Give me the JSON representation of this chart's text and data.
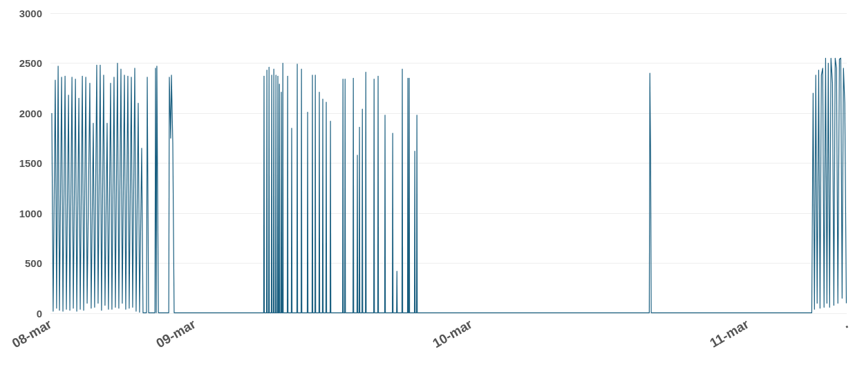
{
  "chart_data": {
    "type": "line",
    "color": "#1a5f80",
    "x": [
      "--03-08T11:37",
      "--03-08T11:44",
      "--03-08T11:55",
      "--03-08T12:02",
      "--03-08T12:10",
      "--03-08T12:17",
      "--03-08T12:28",
      "--03-08T12:35",
      "--03-08T12:46",
      "--03-08T12:53",
      "--03-08T13:04",
      "--03-08T13:11",
      "--03-08T13:22",
      "--03-08T13:29",
      "--03-08T13:40",
      "--03-08T13:47",
      "--03-08T13:58",
      "--03-08T14:05",
      "--03-08T14:16",
      "--03-08T14:23",
      "--03-08T14:34",
      "--03-08T14:41",
      "--03-08T14:55",
      "--03-08T15:02",
      "--03-08T15:13",
      "--03-08T15:20",
      "--03-08T15:31",
      "--03-08T15:38",
      "--03-08T15:49",
      "--03-08T15:56",
      "--03-08T16:07",
      "--03-08T16:14",
      "--03-08T16:25",
      "--03-08T16:32",
      "--03-08T16:43",
      "--03-08T16:50",
      "--03-08T17:01",
      "--03-08T17:08",
      "--03-08T17:19",
      "--03-08T17:26",
      "--03-08T17:37",
      "--03-08T17:44",
      "--03-08T17:55",
      "--03-08T18:02",
      "--03-08T18:13",
      "--03-08T18:20",
      "--03-08T18:31",
      "--03-08T18:38",
      "--03-08T18:49",
      "--03-08T18:56",
      "--03-08T19:07",
      "--03-08T19:14",
      "--03-08T19:25",
      "--03-08T19:32",
      "--03-08T19:50",
      "--03-08T19:54",
      "--03-08T20:01",
      "--03-08T20:34",
      "--03-08T20:37",
      "--03-08T20:41",
      "--03-08T20:44",
      "--03-08T20:52",
      "--03-08T21:46",
      "--03-08T21:49",
      "--03-08T21:56",
      "--03-08T22:00",
      "--03-08T22:07",
      "--03-08T22:14",
      "--03-09T06:00",
      "--03-09T06:02",
      "--03-09T06:04",
      "--03-09T06:15",
      "--03-09T06:17",
      "--03-09T06:19",
      "--03-09T06:26",
      "--03-09T06:28",
      "--03-09T06:30",
      "--03-09T06:40",
      "--03-09T06:42",
      "--03-09T06:44",
      "--03-09T06:51",
      "--03-09T06:53",
      "--03-09T06:55",
      "--03-09T07:02",
      "--03-09T07:04",
      "--03-09T07:06",
      "--03-09T07:12",
      "--03-09T07:14",
      "--03-09T07:16",
      "--03-09T07:20",
      "--03-09T07:22",
      "--03-09T07:24",
      "--03-09T07:30",
      "--03-09T07:32",
      "--03-09T07:34",
      "--03-09T07:38",
      "--03-09T07:40",
      "--03-09T07:42",
      "--03-09T08:03",
      "--03-09T08:05",
      "--03-09T08:07",
      "--03-09T08:24",
      "--03-09T08:26",
      "--03-09T08:28",
      "--03-09T08:53",
      "--03-09T08:55",
      "--03-09T08:57",
      "--03-09T09:15",
      "--03-09T09:17",
      "--03-09T09:19",
      "--03-09T09:47",
      "--03-09T09:49",
      "--03-09T09:51",
      "--03-09T10:12",
      "--03-09T10:14",
      "--03-09T10:16",
      "--03-09T10:27",
      "--03-09T10:29",
      "--03-09T10:31",
      "--03-09T10:48",
      "--03-09T10:50",
      "--03-09T10:52",
      "--03-09T11:06",
      "--03-09T11:08",
      "--03-09T11:10",
      "--03-09T11:24",
      "--03-09T11:26",
      "--03-09T11:28",
      "--03-09T11:46",
      "--03-09T11:48",
      "--03-09T11:50",
      "--03-09T12:51",
      "--03-09T12:53",
      "--03-09T12:55",
      "--03-09T13:02",
      "--03-09T13:04",
      "--03-09T13:06",
      "--03-09T13:45",
      "--03-09T13:47",
      "--03-09T13:49",
      "--03-09T14:06",
      "--03-09T14:08",
      "--03-09T14:10",
      "--03-09T14:17",
      "--03-09T14:19",
      "--03-09T14:21",
      "--03-09T14:32",
      "--03-09T14:34",
      "--03-09T14:36",
      "--03-09T14:50",
      "--03-09T14:52",
      "--03-09T14:54",
      "--03-09T15:33",
      "--03-09T15:35",
      "--03-09T15:37",
      "--03-09T15:54",
      "--03-09T15:56",
      "--03-09T15:58",
      "--03-09T16:30",
      "--03-09T16:32",
      "--03-09T16:34",
      "--03-09T17:10",
      "--03-09T17:12",
      "--03-09T17:14",
      "--03-09T17:32",
      "--03-09T17:34",
      "--03-09T17:36",
      "--03-09T18:00",
      "--03-09T18:02",
      "--03-09T18:04",
      "--03-09T18:29",
      "--03-09T18:31",
      "--03-09T18:33",
      "--03-09T18:36",
      "--03-09T18:38",
      "--03-09T18:40",
      "--03-09T19:05",
      "--03-09T19:07",
      "--03-09T19:09",
      "--03-09T19:16",
      "--03-09T19:18",
      "--03-09T19:20",
      "--03-10T15:28",
      "--03-10T15:31",
      "--03-10T15:35",
      "--03-10T15:38",
      "--03-11T05:34",
      "--03-11T05:41",
      "--03-11T05:48",
      "--03-11T05:55",
      "--03-11T06:02",
      "--03-11T06:10",
      "--03-11T06:17",
      "--03-11T06:24",
      "--03-11T06:31",
      "--03-11T06:38",
      "--03-11T06:46",
      "--03-11T06:53",
      "--03-11T07:00",
      "--03-11T07:07",
      "--03-11T07:14",
      "--03-11T07:22",
      "--03-11T07:29",
      "--03-11T07:36",
      "--03-11T07:43",
      "--03-11T07:50",
      "--03-11T07:58",
      "--03-11T08:05",
      "--03-11T08:12",
      "--03-11T08:19",
      "--03-11T08:26",
      "--03-11T08:34"
    ],
    "values": [
      2000,
      20,
      2330,
      50,
      2470,
      30,
      2360,
      20,
      2370,
      40,
      2180,
      30,
      2360,
      50,
      2340,
      20,
      2150,
      40,
      2370,
      30,
      2360,
      100,
      2300,
      50,
      1900,
      60,
      2480,
      100,
      2480,
      30,
      2380,
      80,
      1900,
      40,
      2300,
      40,
      2360,
      60,
      2500,
      50,
      2440,
      100,
      2380,
      40,
      2370,
      50,
      2360,
      60,
      2450,
      20,
      2100,
      10,
      1650,
      5,
      5,
      2360,
      5,
      5,
      2450,
      5,
      2470,
      5,
      5,
      2360,
      1750,
      2380,
      1700,
      5,
      5,
      2370,
      5,
      5,
      2430,
      5,
      5,
      2460,
      5,
      5,
      2380,
      5,
      5,
      2440,
      5,
      5,
      2380,
      5,
      5,
      2370,
      5,
      5,
      2290,
      5,
      5,
      2210,
      5,
      5,
      2500,
      5,
      5,
      2370,
      5,
      5,
      1850,
      5,
      5,
      2490,
      5,
      5,
      2440,
      5,
      5,
      2010,
      5,
      5,
      2380,
      5,
      5,
      2380,
      5,
      5,
      2210,
      5,
      5,
      2140,
      5,
      5,
      2110,
      5,
      5,
      1920,
      5,
      5,
      2340,
      5,
      5,
      2340,
      5,
      5,
      2350,
      5,
      5,
      1580,
      5,
      5,
      1860,
      5,
      5,
      2040,
      5,
      5,
      2410,
      5,
      5,
      2340,
      5,
      5,
      2370,
      5,
      5,
      1980,
      5,
      5,
      1800,
      5,
      5,
      420,
      5,
      5,
      2440,
      5,
      5,
      2350,
      5,
      5,
      2350,
      5,
      5,
      1620,
      5,
      5,
      1980,
      5,
      5,
      2400,
      1560,
      5,
      5,
      2200,
      40,
      2380,
      100,
      2430,
      50,
      2380,
      2450,
      60,
      2550,
      100,
      2500,
      60,
      2550,
      2300,
      80,
      2550,
      2450,
      100,
      2540,
      2550,
      150,
      2450,
      2100,
      100
    ],
    "xlim": [
      "--03-08T11:30",
      "--03-11T08:36"
    ],
    "xticks": [
      {
        "value": "--03-08T11:30",
        "label": "08-mar"
      },
      {
        "value": "--03-09",
        "label": "09-mar"
      },
      {
        "value": "--03-10",
        "label": "10-mar"
      },
      {
        "value": "--03-11",
        "label": "11-mar"
      },
      {
        "value": "--03-11T08:36",
        "label": "."
      }
    ],
    "ylim": [
      0,
      3000
    ],
    "yticks": [
      0,
      500,
      1000,
      1500,
      2000,
      2500,
      3000
    ],
    "grid": "y",
    "marker": "none",
    "line_style": "solid"
  }
}
